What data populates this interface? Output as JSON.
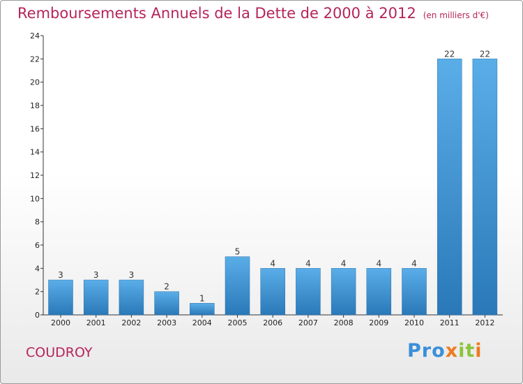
{
  "header": {
    "title": "Remboursements Annuels de la Dette de 2000 à 2012",
    "unit": "(en milliers d'€)"
  },
  "footer": {
    "city": "COUDROY",
    "logo_letters": [
      {
        "ch": "P",
        "color": "#3a8fd8"
      },
      {
        "ch": "r",
        "color": "#3a8fd8"
      },
      {
        "ch": "o",
        "color": "#3a8fd8"
      },
      {
        "ch": "x",
        "color": "#f07a1e"
      },
      {
        "ch": "i",
        "color": "#8cc43c"
      },
      {
        "ch": "t",
        "color": "#8cc43c"
      },
      {
        "ch": "i",
        "color": "#f07a1e"
      }
    ]
  },
  "chart_data": {
    "type": "bar",
    "title": "Remboursements Annuels de la Dette de 2000 à 2012",
    "subtitle": "(en milliers d'€)",
    "categories": [
      "2000",
      "2001",
      "2002",
      "2003",
      "2004",
      "2005",
      "2006",
      "2007",
      "2008",
      "2009",
      "2010",
      "2011",
      "2012"
    ],
    "values": [
      3,
      3,
      3,
      2,
      1,
      5,
      4,
      4,
      4,
      4,
      4,
      22,
      22
    ],
    "ylim": [
      0,
      24
    ],
    "yticks": [
      0,
      2,
      4,
      6,
      8,
      10,
      12,
      14,
      16,
      18,
      20,
      22,
      24
    ],
    "grid": false,
    "bar_color_top": "#5aaee8",
    "bar_color_bottom": "#2a78b8"
  }
}
